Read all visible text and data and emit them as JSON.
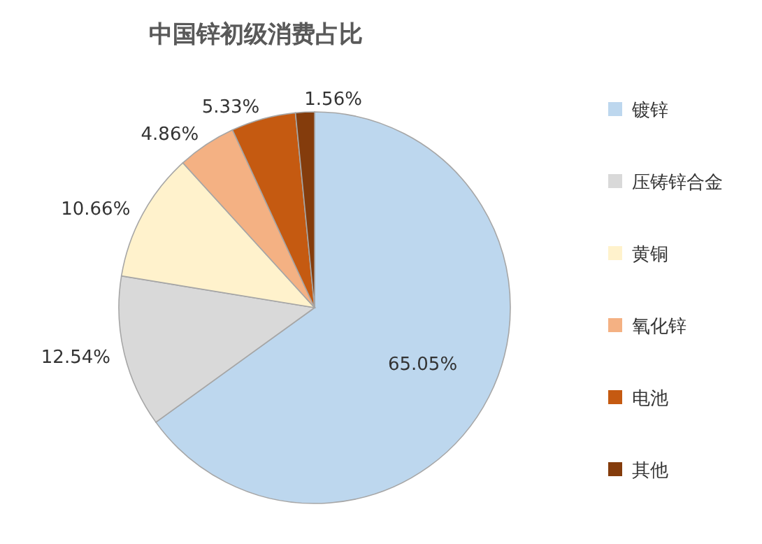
{
  "chart_data": {
    "type": "pie",
    "title": "中国锌初级消费占比",
    "categories": [
      "镀锌",
      "压铸锌合金",
      "黄铜",
      "氧化锌",
      "电池",
      "其他"
    ],
    "values": [
      65.05,
      12.54,
      10.66,
      4.86,
      5.33,
      1.56
    ],
    "colors": [
      "#bdd7ee",
      "#d9d9d9",
      "#fff2cc",
      "#f4b183",
      "#c55a11",
      "#843c0c"
    ],
    "value_labels": [
      "65.05%",
      "12.54%",
      "10.66%",
      "4.86%",
      "5.33%",
      "1.56%"
    ],
    "legend": "right"
  }
}
